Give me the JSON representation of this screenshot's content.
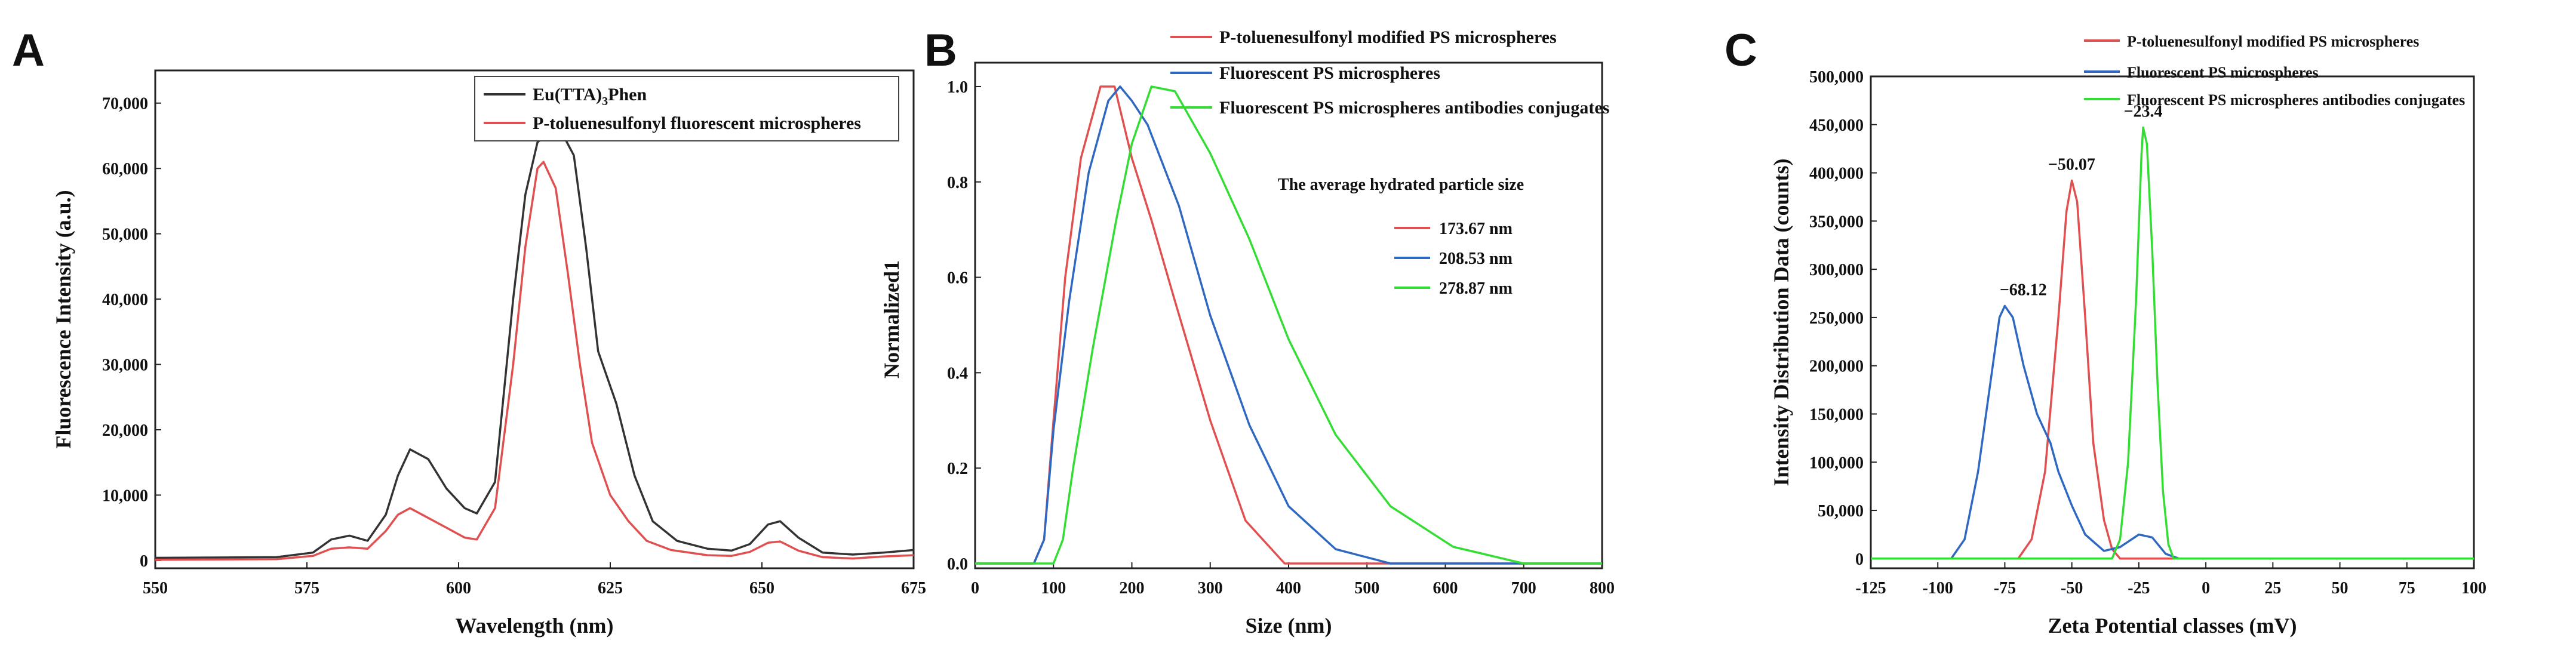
{
  "panels": [
    {
      "letter": "A"
    },
    {
      "letter": "B"
    },
    {
      "letter": "C"
    }
  ],
  "chart_data": [
    {
      "type": "line",
      "xlabel": "Wavelength (nm)",
      "ylabel": "Fluorescence Intensity (a.u.)",
      "xlim": [
        550,
        675
      ],
      "ylim": [
        0,
        75000
      ],
      "xticks": [
        550,
        575,
        600,
        625,
        650,
        675
      ],
      "yticks": [
        0,
        10000,
        20000,
        30000,
        40000,
        50000,
        60000,
        70000
      ],
      "xtick_labels": [
        "550",
        "575",
        "600",
        "625",
        "650",
        "675"
      ],
      "ytick_labels": [
        "0",
        "10,000",
        "20,000",
        "30,000",
        "40,000",
        "50,000",
        "60,000",
        "70,000"
      ],
      "legend_position": "top-right",
      "series": [
        {
          "name": "Eu(TTA)3Phen",
          "name_main": "Eu(TTA)",
          "name_sub": "3",
          "name_tail": "Phen",
          "color": "#333333",
          "points": [
            [
              550,
              400
            ],
            [
              570,
              500
            ],
            [
              576,
              1200
            ],
            [
              579,
              3200
            ],
            [
              582,
              3800
            ],
            [
              585,
              3000
            ],
            [
              588,
              7000
            ],
            [
              590,
              13000
            ],
            [
              592,
              17000
            ],
            [
              595,
              15500
            ],
            [
              598,
              11000
            ],
            [
              601,
              8000
            ],
            [
              603,
              7200
            ],
            [
              606,
              12000
            ],
            [
              609,
              40000
            ],
            [
              611,
              56000
            ],
            [
              613,
              64000
            ],
            [
              615,
              65500
            ],
            [
              617,
              65500
            ],
            [
              619,
              62000
            ],
            [
              621,
              48000
            ],
            [
              623,
              32000
            ],
            [
              626,
              24000
            ],
            [
              629,
              13000
            ],
            [
              632,
              6000
            ],
            [
              636,
              3000
            ],
            [
              641,
              1800
            ],
            [
              645,
              1500
            ],
            [
              648,
              2500
            ],
            [
              651,
              5500
            ],
            [
              653,
              6000
            ],
            [
              656,
              3500
            ],
            [
              660,
              1200
            ],
            [
              665,
              900
            ],
            [
              670,
              1200
            ],
            [
              675,
              1600
            ]
          ]
        },
        {
          "name": "P-toluenesulfonyl fluorescent microspheres",
          "color": "#e05050",
          "points": [
            [
              550,
              100
            ],
            [
              570,
              200
            ],
            [
              576,
              700
            ],
            [
              579,
              1800
            ],
            [
              582,
              2000
            ],
            [
              585,
              1800
            ],
            [
              588,
              4500
            ],
            [
              590,
              7000
            ],
            [
              592,
              8000
            ],
            [
              595,
              6500
            ],
            [
              598,
              5000
            ],
            [
              601,
              3500
            ],
            [
              603,
              3200
            ],
            [
              606,
              8000
            ],
            [
              609,
              30000
            ],
            [
              611,
              48000
            ],
            [
              613,
              60000
            ],
            [
              614,
              61000
            ],
            [
              616,
              57000
            ],
            [
              618,
              44000
            ],
            [
              620,
              30000
            ],
            [
              622,
              18000
            ],
            [
              625,
              10000
            ],
            [
              628,
              6000
            ],
            [
              631,
              3000
            ],
            [
              635,
              1600
            ],
            [
              641,
              800
            ],
            [
              645,
              700
            ],
            [
              648,
              1300
            ],
            [
              651,
              2700
            ],
            [
              653,
              2900
            ],
            [
              656,
              1500
            ],
            [
              660,
              500
            ],
            [
              665,
              300
            ],
            [
              670,
              600
            ],
            [
              675,
              800
            ]
          ]
        }
      ]
    },
    {
      "type": "line",
      "xlabel": "Size (nm)",
      "ylabel": "Normalized1",
      "xlim": [
        0,
        800
      ],
      "ylim": [
        0,
        1.05
      ],
      "xticks": [
        0,
        100,
        200,
        300,
        400,
        500,
        600,
        700,
        800
      ],
      "yticks": [
        0,
        0.2,
        0.4,
        0.6,
        0.8,
        1.0
      ],
      "xtick_labels": [
        "0",
        "100",
        "200",
        "300",
        "400",
        "500",
        "600",
        "700",
        "800"
      ],
      "ytick_labels": [
        "0.0",
        "0.2",
        "0.4",
        "0.6",
        "0.8",
        "1.0"
      ],
      "legend_position": "top",
      "annotation_title": "The average hydrated particle size",
      "series": [
        {
          "name": "P-toluenesulfonyl modified PS microspheres",
          "average_size_label": "173.67 nm",
          "color": "#e05050",
          "points": [
            [
              0,
              0
            ],
            [
              75,
              0
            ],
            [
              88,
              0.05
            ],
            [
              100,
              0.3
            ],
            [
              115,
              0.6
            ],
            [
              135,
              0.85
            ],
            [
              160,
              1.0
            ],
            [
              178,
              1.0
            ],
            [
              200,
              0.85
            ],
            [
              225,
              0.72
            ],
            [
              255,
              0.55
            ],
            [
              300,
              0.3
            ],
            [
              345,
              0.09
            ],
            [
              395,
              0
            ],
            [
              800,
              0
            ]
          ]
        },
        {
          "name": "Fluorescent PS microspheres",
          "average_size_label": "208.53 nm",
          "color": "#2f68c0",
          "points": [
            [
              0,
              0
            ],
            [
              75,
              0
            ],
            [
              88,
              0.05
            ],
            [
              100,
              0.28
            ],
            [
              120,
              0.55
            ],
            [
              145,
              0.82
            ],
            [
              170,
              0.97
            ],
            [
              185,
              1.0
            ],
            [
              200,
              0.97
            ],
            [
              220,
              0.92
            ],
            [
              260,
              0.75
            ],
            [
              300,
              0.52
            ],
            [
              350,
              0.29
            ],
            [
              400,
              0.12
            ],
            [
              460,
              0.03
            ],
            [
              530,
              0
            ],
            [
              800,
              0
            ]
          ]
        },
        {
          "name": "Fluorescent PS microspheres antibodies conjugates",
          "average_size_label": "278.87 nm",
          "color": "#33dd33",
          "points": [
            [
              0,
              0
            ],
            [
              100,
              0
            ],
            [
              112,
              0.05
            ],
            [
              125,
              0.2
            ],
            [
              150,
              0.45
            ],
            [
              180,
              0.72
            ],
            [
              200,
              0.88
            ],
            [
              225,
              1.0
            ],
            [
              255,
              0.99
            ],
            [
              300,
              0.86
            ],
            [
              350,
              0.68
            ],
            [
              400,
              0.47
            ],
            [
              460,
              0.27
            ],
            [
              530,
              0.12
            ],
            [
              610,
              0.035
            ],
            [
              700,
              0
            ],
            [
              800,
              0
            ]
          ]
        }
      ]
    },
    {
      "type": "line",
      "xlabel": "Zeta Potential classes (mV)",
      "ylabel": "Intensity Distribution Data (counts)",
      "xlim": [
        -125,
        100
      ],
      "ylim": [
        0,
        500000
      ],
      "xticks": [
        -125,
        -100,
        -75,
        -50,
        -25,
        0,
        25,
        50,
        75,
        100
      ],
      "yticks": [
        0,
        50000,
        100000,
        150000,
        200000,
        250000,
        300000,
        350000,
        400000,
        450000,
        500000
      ],
      "xtick_labels": [
        "-125",
        "-100",
        "-75",
        "-50",
        "-25",
        "0",
        "25",
        "50",
        "75",
        "100"
      ],
      "ytick_labels": [
        "0",
        "50,000",
        "100,000",
        "150,000",
        "200,000",
        "250,000",
        "300,000",
        "350,000",
        "400,000",
        "450,000",
        "500,000"
      ],
      "legend_position": "top-right",
      "series": [
        {
          "name": "P-toluenesulfonyl modified PS microspheres",
          "peak_label": "−50.07",
          "peak": [
            -50.07,
            392000
          ],
          "color": "#e05050",
          "points": [
            [
              -125,
              0
            ],
            [
              -70,
              0
            ],
            [
              -65,
              20000
            ],
            [
              -60,
              90000
            ],
            [
              -55,
              250000
            ],
            [
              -52,
              360000
            ],
            [
              -50,
              392000
            ],
            [
              -48,
              370000
            ],
            [
              -45,
              250000
            ],
            [
              -42,
              120000
            ],
            [
              -38,
              40000
            ],
            [
              -35,
              10000
            ],
            [
              -32,
              0
            ],
            [
              100,
              0
            ]
          ]
        },
        {
          "name": "Fluorescent PS microspheres",
          "peak_label": "−68.12",
          "peak": [
            -68.12,
            262000
          ],
          "color": "#2f68c0",
          "points": [
            [
              -125,
              0
            ],
            [
              -95,
              0
            ],
            [
              -90,
              20000
            ],
            [
              -85,
              90000
            ],
            [
              -80,
              190000
            ],
            [
              -77,
              250000
            ],
            [
              -75,
              262000
            ],
            [
              -72,
              250000
            ],
            [
              -68,
              200000
            ],
            [
              -63,
              150000
            ],
            [
              -58,
              120000
            ],
            [
              -55,
              90000
            ],
            [
              -50,
              55000
            ],
            [
              -45,
              25000
            ],
            [
              -38,
              8000
            ],
            [
              -32,
              12000
            ],
            [
              -25,
              25000
            ],
            [
              -20,
              22000
            ],
            [
              -15,
              5000
            ],
            [
              -10,
              0
            ],
            [
              100,
              0
            ]
          ]
        },
        {
          "name": "Fluorescent PS microspheres antibodies conjugates",
          "peak_label": "−23.4",
          "peak": [
            -23.4,
            447000
          ],
          "color": "#33dd33",
          "points": [
            [
              -125,
              0
            ],
            [
              -35,
              0
            ],
            [
              -32,
              20000
            ],
            [
              -29,
              100000
            ],
            [
              -26,
              270000
            ],
            [
              -24,
              420000
            ],
            [
              -23.4,
              447000
            ],
            [
              -22,
              430000
            ],
            [
              -20,
              320000
            ],
            [
              -18,
              180000
            ],
            [
              -16,
              70000
            ],
            [
              -14,
              15000
            ],
            [
              -12,
              0
            ],
            [
              100,
              0
            ]
          ]
        }
      ]
    }
  ]
}
